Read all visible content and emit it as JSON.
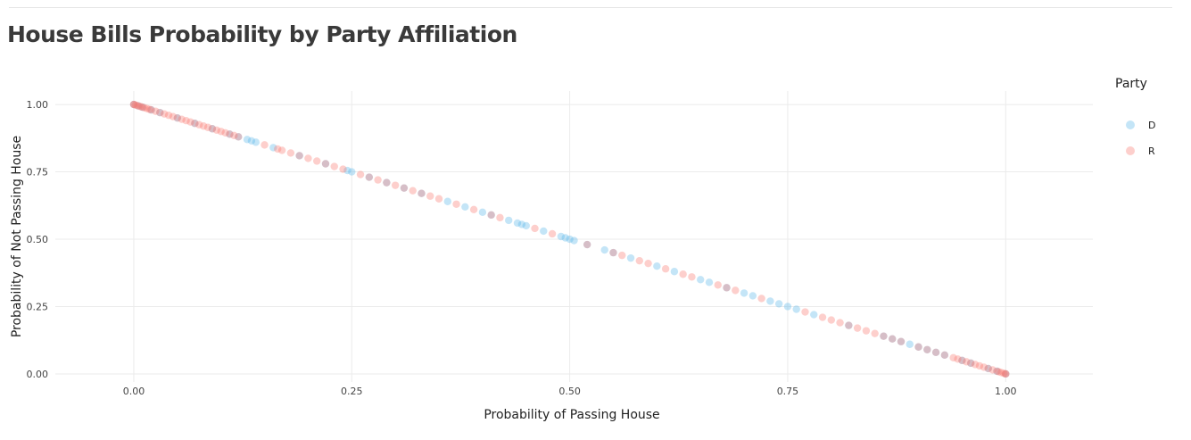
{
  "page": {
    "title": "House Bills Probability by Party Affiliation"
  },
  "chart_data": {
    "type": "scatter",
    "title": "House Bills Probability by Party Affiliation",
    "xlabel": "Probability of Passing House",
    "ylabel": "Probability of Not Passing House",
    "xlim": [
      -0.09,
      1.1
    ],
    "ylim": [
      -0.03,
      1.05
    ],
    "x_ticks": [
      "0.00",
      "0.25",
      "0.50",
      "0.75",
      "1.00"
    ],
    "y_ticks": [
      "0.00",
      "0.25",
      "0.50",
      "0.75",
      "1.00"
    ],
    "grid": true,
    "relationship": "y = 1 - x",
    "legend": {
      "title": "Party",
      "position": "right",
      "entries": [
        "D",
        "R"
      ]
    },
    "series": [
      {
        "name": "D",
        "color": "#56B4E9",
        "x": [
          0.0,
          0.005,
          0.01,
          0.02,
          0.03,
          0.05,
          0.07,
          0.09,
          0.11,
          0.12,
          0.13,
          0.135,
          0.14,
          0.16,
          0.19,
          0.22,
          0.245,
          0.25,
          0.27,
          0.29,
          0.31,
          0.33,
          0.36,
          0.38,
          0.4,
          0.41,
          0.43,
          0.44,
          0.445,
          0.45,
          0.47,
          0.49,
          0.495,
          0.5,
          0.505,
          0.52,
          0.54,
          0.55,
          0.57,
          0.6,
          0.62,
          0.65,
          0.66,
          0.68,
          0.7,
          0.71,
          0.73,
          0.74,
          0.75,
          0.76,
          0.78,
          0.82,
          0.86,
          0.87,
          0.88,
          0.89,
          0.9,
          0.91,
          0.92,
          0.93,
          0.95,
          0.96,
          0.98,
          0.99,
          1.0
        ]
      },
      {
        "name": "R",
        "color": "#F8766D",
        "x": [
          0.0,
          0.0,
          0.002,
          0.004,
          0.006,
          0.008,
          0.01,
          0.012,
          0.015,
          0.018,
          0.02,
          0.025,
          0.03,
          0.035,
          0.04,
          0.045,
          0.05,
          0.055,
          0.06,
          0.065,
          0.07,
          0.075,
          0.08,
          0.085,
          0.09,
          0.095,
          0.1,
          0.105,
          0.11,
          0.115,
          0.12,
          0.15,
          0.165,
          0.17,
          0.18,
          0.19,
          0.2,
          0.21,
          0.22,
          0.23,
          0.24,
          0.26,
          0.27,
          0.28,
          0.29,
          0.3,
          0.31,
          0.32,
          0.33,
          0.34,
          0.35,
          0.37,
          0.39,
          0.41,
          0.42,
          0.46,
          0.48,
          0.52,
          0.55,
          0.56,
          0.58,
          0.59,
          0.61,
          0.63,
          0.64,
          0.67,
          0.68,
          0.69,
          0.72,
          0.77,
          0.79,
          0.8,
          0.81,
          0.82,
          0.83,
          0.84,
          0.85,
          0.86,
          0.87,
          0.88,
          0.9,
          0.91,
          0.92,
          0.93,
          0.94,
          0.945,
          0.95,
          0.955,
          0.96,
          0.965,
          0.97,
          0.975,
          0.98,
          0.985,
          0.99,
          0.992,
          0.995,
          0.998,
          1.0,
          1.0
        ]
      }
    ]
  }
}
